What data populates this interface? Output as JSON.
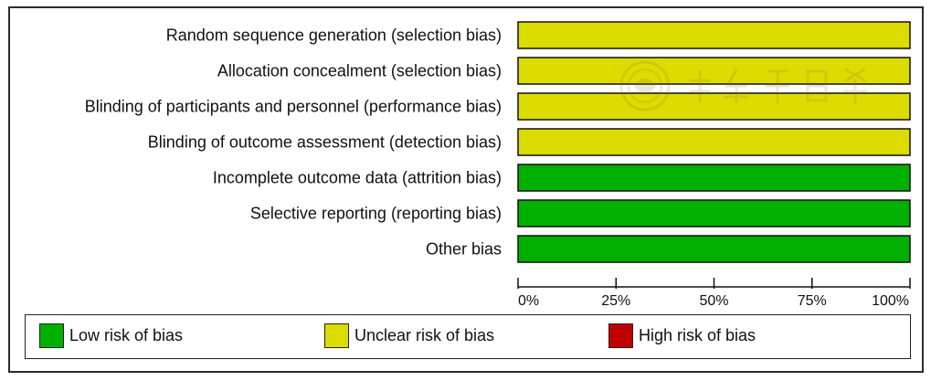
{
  "chart_data": {
    "type": "bar",
    "stacked": true,
    "orientation": "horizontal",
    "categories": [
      "Random sequence generation (selection bias)",
      "Allocation concealment (selection bias)",
      "Blinding of participants and personnel (performance bias)",
      "Blinding of outcome assessment (detection bias)",
      "Incomplete outcome data (attrition bias)",
      "Selective reporting (reporting bias)",
      "Other bias"
    ],
    "series": [
      {
        "name": "Low risk of bias",
        "color": "#00b000",
        "values": [
          0,
          0,
          0,
          0,
          100,
          100,
          100
        ]
      },
      {
        "name": "Unclear risk of bias",
        "color": "#dcdc00",
        "values": [
          100,
          100,
          100,
          100,
          0,
          0,
          0
        ]
      },
      {
        "name": "High risk of bias",
        "color": "#c00000",
        "values": [
          0,
          0,
          0,
          0,
          0,
          0,
          0
        ]
      }
    ],
    "xlim": [
      0,
      100
    ],
    "xticks": [
      "0%",
      "25%",
      "50%",
      "75%",
      "100%"
    ],
    "legend_position": "bottom",
    "grid": false
  }
}
